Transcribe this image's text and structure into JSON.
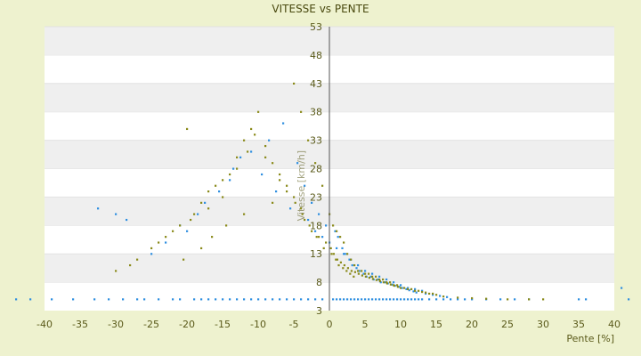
{
  "chart_data": {
    "type": "scatter",
    "title": "VITESSE vs PENTE",
    "xlabel": "Pente [%]",
    "ylabel": "Vitesse [km/h]",
    "xlim": [
      -40,
      40
    ],
    "ylim": [
      3,
      53
    ],
    "x_ticks": [
      -40,
      -35,
      -30,
      -25,
      -20,
      -15,
      -10,
      -5,
      0,
      5,
      10,
      15,
      20,
      25,
      30,
      35,
      40
    ],
    "y_ticks": [
      3,
      8,
      13,
      18,
      23,
      28,
      33,
      38,
      43,
      48,
      53
    ],
    "grid": "horizontal bands",
    "colors": {
      "series_a": "#2f8fe0",
      "series_b": "#8a8a1a",
      "band_alt": "#efefef",
      "plot_bg": "#ffffff",
      "page_bg": "#eef2cf",
      "zero_line": "#555555"
    },
    "series": [
      {
        "color_key": "series_a",
        "x": [
          -44,
          -42,
          -39,
          -36,
          -33,
          -31,
          -29,
          -27,
          -26,
          -24,
          -22,
          -21,
          -19,
          -18,
          -17,
          -16,
          -15,
          -14,
          -13,
          -12,
          -11,
          -10,
          -9,
          -8,
          -7,
          -6,
          -5,
          -4,
          -3,
          -2,
          -1,
          0.5,
          1,
          1.5,
          2,
          2.5,
          3,
          3.5,
          4,
          4.5,
          5,
          5.5,
          6,
          6.5,
          7,
          7.5,
          8,
          8.5,
          9,
          9.5,
          10,
          10.5,
          11,
          11.5,
          12,
          12.5,
          13,
          14,
          15,
          16,
          17,
          18,
          19,
          20,
          22,
          24,
          26,
          28,
          35,
          36,
          41,
          42,
          -32.5,
          -30,
          -28.5,
          -21,
          -17.5,
          -14,
          -11,
          -8.5,
          -6.5,
          -4.5,
          -3.5,
          -2.5,
          -1.5,
          -0.5,
          0.8,
          1.2,
          1.8,
          2.2,
          2.8,
          3.2,
          3.8,
          4.2,
          4.8,
          5.2,
          5.8,
          6.2,
          6.8,
          7.2,
          7.8,
          8.2,
          8.8,
          9.2,
          9.8,
          10.2,
          10.8,
          11.2,
          11.8,
          12.2,
          13.5,
          14.5,
          15.5,
          16.5,
          -25,
          -23,
          -20,
          -18.5,
          -15.5,
          -13.5,
          -12.5,
          -9.5,
          -7.5,
          -5.5,
          -3,
          -2,
          -1,
          0,
          1,
          2,
          3,
          4,
          5,
          6,
          7,
          8,
          9,
          10,
          11,
          12,
          13
        ],
        "y": [
          5,
          5,
          5,
          5,
          5,
          5,
          5,
          5,
          5,
          5,
          5,
          5,
          5,
          5,
          5,
          5,
          5,
          5,
          5,
          5,
          5,
          5,
          5,
          5,
          5,
          5,
          5,
          5,
          5,
          5,
          5,
          5,
          5,
          5,
          5,
          5,
          5,
          5,
          5,
          5,
          5,
          5,
          5,
          5,
          5,
          5,
          5,
          5,
          5,
          5,
          5,
          5,
          5,
          5,
          5,
          5,
          5,
          5,
          5,
          5,
          5,
          5,
          5,
          5,
          5,
          5,
          5,
          5,
          5,
          5,
          7,
          5,
          21,
          20,
          19,
          18,
          22,
          26,
          31,
          33,
          36,
          29,
          25,
          22,
          20,
          18,
          17,
          16,
          14,
          13,
          12,
          11,
          10.5,
          10,
          9.5,
          9,
          9,
          8.5,
          8.5,
          8,
          8,
          7.8,
          7.6,
          7.4,
          7.2,
          7,
          6.8,
          6.6,
          6.4,
          6.2,
          6,
          5.8,
          5.6,
          5.4,
          13,
          15,
          17,
          20,
          24,
          28,
          30,
          27,
          24,
          21,
          19,
          17,
          16,
          15,
          14,
          13,
          12,
          11,
          10,
          9.5,
          9,
          8.5,
          8,
          7.5,
          7,
          6.8,
          6.5
        ]
      },
      {
        "color_key": "series_b",
        "x": [
          -30,
          -28,
          -27,
          -25,
          -23,
          -21,
          -20,
          -19,
          -18,
          -17,
          -16,
          -15,
          -14,
          -13,
          -12,
          -11,
          -10,
          -9,
          -8,
          -7,
          -6,
          -5,
          -4,
          -3,
          -2,
          -1,
          0,
          0.5,
          1,
          1.5,
          2,
          2.5,
          3,
          3.5,
          4,
          4.5,
          5,
          5.5,
          6,
          6.5,
          7,
          7.5,
          8,
          8.5,
          9,
          9.5,
          10,
          11,
          12,
          13,
          14,
          15,
          16,
          18,
          20,
          22,
          25,
          28,
          30,
          -24,
          -22,
          -19.5,
          -17,
          -15,
          -13,
          -11.5,
          -10.5,
          -9,
          -7,
          -5,
          -4,
          -3.5,
          -2.5,
          -1.5,
          -0.5,
          0.2,
          0.6,
          1.1,
          1.6,
          2.1,
          2.6,
          3.1,
          3.6,
          4.1,
          4.6,
          5.1,
          5.6,
          6.1,
          6.6,
          7.1,
          7.6,
          8.1,
          8.6,
          9.1,
          9.6,
          10.5,
          11.5,
          12.5,
          13.5,
          14.5,
          -20.5,
          -18,
          -16.5,
          -14.5,
          -12,
          -8,
          -6,
          -4.8,
          -3.8,
          -2.8,
          -1.8,
          -0.8,
          0.3,
          0.9,
          1.3,
          1.9,
          2.4,
          2.9,
          3.4
        ],
        "y": [
          10,
          11,
          12,
          14,
          16,
          18,
          35,
          20,
          22,
          24,
          25,
          26,
          27,
          30,
          33,
          35,
          38,
          32,
          29,
          27,
          25,
          43,
          38,
          33,
          29,
          25,
          20,
          18,
          17,
          16,
          15,
          13,
          12,
          11,
          10,
          10,
          9.5,
          9.5,
          9,
          9,
          8.5,
          8.5,
          8,
          8,
          7.5,
          7.5,
          7,
          6.8,
          6.5,
          6.3,
          6,
          5.8,
          5.5,
          5.3,
          5.2,
          5.1,
          5,
          5,
          5,
          15,
          17,
          19,
          21,
          23,
          28,
          31,
          34,
          30,
          26,
          23,
          21,
          19,
          17,
          16,
          15,
          14,
          13,
          12,
          11.5,
          11,
          10.5,
          10,
          9.8,
          9.5,
          9.2,
          9,
          8.8,
          8.6,
          8.4,
          8.2,
          8,
          7.8,
          7.6,
          7.4,
          7.2,
          7,
          6.8,
          6.5,
          6.2,
          6,
          12,
          14,
          16,
          18,
          20,
          22,
          24,
          22,
          20,
          18,
          16,
          14,
          13,
          12,
          11,
          10.5,
          10,
          9.5,
          9
        ]
      }
    ]
  }
}
